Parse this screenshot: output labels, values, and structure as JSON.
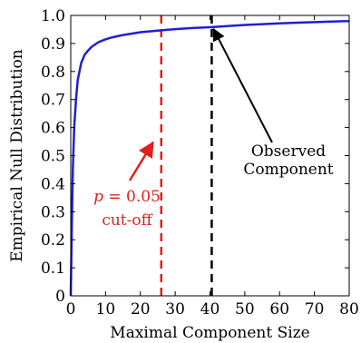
{
  "chart_data": {
    "type": "line",
    "title": "",
    "xlabel": "Maximal Component Size",
    "ylabel": "Empirical Null Distribution",
    "xlim": [
      0,
      80
    ],
    "ylim": [
      0,
      1.0
    ],
    "xticks": [
      0,
      10,
      20,
      30,
      40,
      50,
      60,
      70,
      80
    ],
    "yticks": [
      0,
      0.1,
      0.2,
      0.3,
      0.4,
      0.5,
      0.6,
      0.7,
      0.8,
      0.9,
      1.0
    ],
    "xtick_labels": [
      "0",
      "10",
      "20",
      "30",
      "40",
      "50",
      "60",
      "70",
      "80"
    ],
    "ytick_labels": [
      "0",
      "0.1",
      "0.2",
      "0.3",
      "0.4",
      "0.5",
      "0.6",
      "0.7",
      "0.8",
      "0.9",
      "1.0"
    ],
    "grid": false,
    "series": [
      {
        "color": "#1f1fd6",
        "x": [
          0,
          0.3,
          0.6,
          1,
          1.5,
          2,
          3,
          4,
          5,
          6,
          8,
          10,
          12,
          15,
          20,
          25,
          30,
          35,
          40,
          45,
          50,
          55,
          60,
          65,
          70,
          75,
          80
        ],
        "y": [
          0,
          0.25,
          0.45,
          0.6,
          0.7,
          0.77,
          0.83,
          0.86,
          0.875,
          0.888,
          0.905,
          0.915,
          0.922,
          0.93,
          0.94,
          0.946,
          0.951,
          0.955,
          0.958,
          0.962,
          0.966,
          0.969,
          0.972,
          0.974,
          0.976,
          0.978,
          0.98
        ]
      }
    ],
    "vlines": [
      {
        "x": 26,
        "color": "#e0201c",
        "style": "dashed"
      },
      {
        "x": 40.5,
        "color": "#000000",
        "style": "dashed"
      }
    ],
    "annotations": [
      {
        "lines": [
          "Observed",
          "Component"
        ],
        "color": "#000000",
        "arrow_to": {
          "x": 40.5,
          "y": 0.958
        }
      },
      {
        "lines": [
          "p = 0.05",
          "cut-off"
        ],
        "color": "#e0201c",
        "italic_prefix": "p",
        "arrow_to": {
          "x": 25.2,
          "y": 0.56
        }
      }
    ]
  }
}
